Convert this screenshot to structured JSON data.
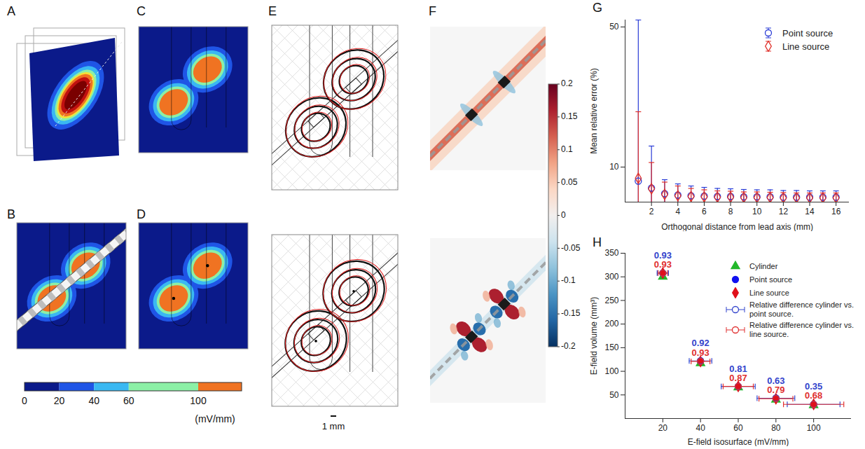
{
  "panel_labels": [
    "A",
    "B",
    "C",
    "D",
    "E",
    "F",
    "G",
    "H"
  ],
  "colorbar_field": {
    "range": [
      0,
      125
    ],
    "ticks": [
      0,
      20,
      40,
      60,
      100
    ],
    "bands": [
      0,
      20,
      40,
      60,
      100,
      125
    ],
    "colors": [
      "#0b1a8a",
      "#1f55e6",
      "#3ab8f2",
      "#8cf0a6",
      "#f07322"
    ],
    "unit": "(mV/mm)"
  },
  "colorbar_error": {
    "range": [
      -0.2,
      0.2
    ],
    "ticks": [
      0.2,
      0.15,
      0.1,
      0.05,
      0,
      -0.05,
      -0.1,
      -0.15,
      -0.2
    ]
  },
  "scale_bar": "1 mm",
  "chart_data": [
    {
      "type": "scatter",
      "x_label": "Orthogonal distance from lead axis (mm)",
      "y_label": "Mean relative error (%)",
      "x": [
        1,
        2,
        3,
        4,
        5,
        6,
        7,
        8,
        9,
        10,
        11,
        12,
        13,
        14,
        15,
        16
      ],
      "xlim": [
        0,
        17
      ],
      "xticks": [
        2,
        4,
        6,
        8,
        10,
        12,
        14,
        16
      ],
      "ylim": [
        0,
        52
      ],
      "yticks": [
        10,
        50
      ],
      "legend": "top-right",
      "series": [
        {
          "name": "Point source",
          "color": "#2a3cd6",
          "marker": "open circle",
          "values": [
            6.0,
            4.0,
            2.4,
            2.0,
            1.8,
            1.7,
            1.6,
            1.6,
            1.5,
            1.5,
            1.5,
            1.4,
            1.4,
            1.4,
            1.4,
            1.4
          ],
          "error": [
            46,
            12,
            4.0,
            3.2,
            2.8,
            2.5,
            2.3,
            2.2,
            2.1,
            2.0,
            2.0,
            1.9,
            1.9,
            1.8,
            1.8,
            1.8
          ]
        },
        {
          "name": "Line source",
          "color": "#e0302a",
          "marker": "open diamond",
          "values": [
            6.8,
            3.8,
            2.2,
            1.8,
            1.6,
            1.5,
            1.4,
            1.4,
            1.3,
            1.3,
            1.3,
            1.2,
            1.2,
            1.2,
            1.2,
            1.2
          ],
          "error": [
            19,
            7.5,
            3.5,
            2.8,
            2.3,
            2.0,
            1.8,
            1.7,
            1.6,
            1.6,
            1.5,
            1.5,
            1.4,
            1.4,
            1.4,
            1.4
          ]
        }
      ]
    },
    {
      "type": "scatter",
      "x_label": "E-field isosurface (mV/mm)",
      "y_label": "E-field volume (mm³)",
      "x": [
        20,
        40,
        60,
        80,
        100
      ],
      "xlim": [
        0,
        120
      ],
      "xticks": [
        20,
        40,
        60,
        80,
        100
      ],
      "ylim": [
        0,
        350
      ],
      "yticks": [
        50,
        100,
        150,
        200,
        250,
        300,
        350
      ],
      "legend": "top-right",
      "series": [
        {
          "name": "Cylinder",
          "color": "#22b82a",
          "marker": "triangle",
          "values": [
            300,
            117,
            66,
            40,
            28
          ]
        },
        {
          "name": "Point source",
          "color": "#1010f0",
          "marker": "circle",
          "values": [
            308,
            122,
            68,
            43,
            30
          ]
        },
        {
          "name": "Line source",
          "color": "#e0101a",
          "marker": "diamond",
          "values": [
            308,
            121,
            68,
            42,
            30
          ]
        },
        {
          "name": "Relative difference cylinder vs. point source.",
          "color": "#3344cc",
          "marker": "open circle",
          "values": [
            308,
            122,
            68,
            43,
            30
          ],
          "xerror": [
            3,
            6,
            9,
            10,
            14
          ],
          "annotations": [
            0.93,
            0.92,
            0.81,
            0.63,
            0.35
          ]
        },
        {
          "name": "Relative difference cylinder vs. line source.",
          "color": "#e03030",
          "marker": "open circle",
          "values": [
            308,
            121,
            68,
            42,
            30
          ],
          "xerror": [
            2.5,
            5,
            8,
            9,
            16
          ],
          "annotations": [
            0.93,
            0.93,
            0.87,
            0.79,
            0.68
          ]
        }
      ]
    }
  ]
}
